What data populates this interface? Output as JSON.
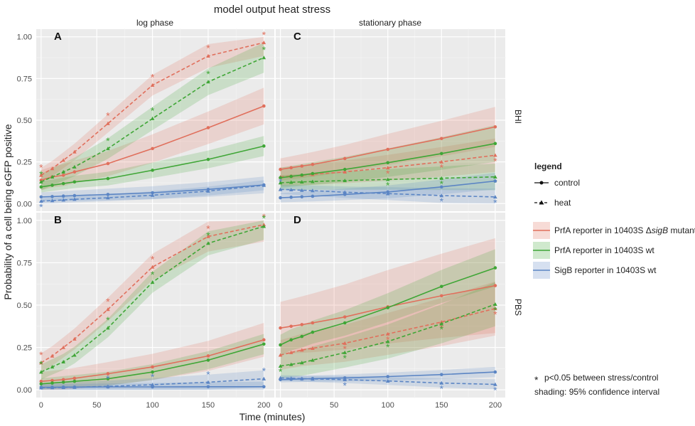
{
  "chart_data": {
    "type": "line",
    "title": "model output heat stress",
    "xlabel": "Time (minutes)",
    "ylabel": "Probability of a cell being eGFP positive",
    "x_ticks": [
      0,
      50,
      100,
      150,
      200
    ],
    "y_ticks": [
      "0.00",
      "0.25",
      "0.50",
      "0.75",
      "1.00"
    ],
    "xlim": [
      -5,
      210
    ],
    "ylim": [
      -0.05,
      1.05
    ],
    "x": [
      0,
      10,
      20,
      30,
      60,
      100,
      150,
      200
    ],
    "col_headers": [
      "log phase",
      "stationary phase"
    ],
    "row_headers": [
      "BHI",
      "PBS"
    ],
    "legend": {
      "title": "legend",
      "line_types": [
        "control",
        "heat"
      ],
      "series": [
        {
          "pre": "PrfA reporter in 10403S Δ",
          "ital": "sigB",
          "post": " mutant"
        },
        {
          "pre": "PrfA reporter in 10403S wt",
          "ital": "",
          "post": ""
        },
        {
          "pre": "SigB reporter in 10403S wt",
          "ital": "",
          "post": ""
        }
      ],
      "colors": [
        "#e06f5c",
        "#3fa636",
        "#5b85c4"
      ],
      "note_star": "*",
      "note_sig": "p<0.05 between stress/control",
      "note_shading": "shading: 95% confidence interval"
    },
    "panels": [
      {
        "label": "A",
        "col": 0,
        "row": 0,
        "series": [
          {
            "name": "PrfA ΔsigB",
            "control": [
              0.14,
              0.16,
              0.17,
              0.19,
              0.24,
              0.33,
              0.455,
              0.585
            ],
            "heat": [
              0.17,
              0.21,
              0.26,
              0.31,
              0.48,
              0.71,
              0.885,
              0.965
            ],
            "ci_control": 0.11,
            "ci_heat": 0.08,
            "stars": [
              0,
              60,
              100,
              150,
              200
            ]
          },
          {
            "name": "PrfA wt",
            "control": [
              0.1,
              0.11,
              0.12,
              0.13,
              0.15,
              0.2,
              0.265,
              0.345
            ],
            "heat": [
              0.13,
              0.16,
              0.19,
              0.22,
              0.33,
              0.51,
              0.73,
              0.875
            ],
            "ci_control": 0.06,
            "ci_heat": 0.09,
            "stars": [
              0,
              60,
              100,
              150,
              200
            ]
          },
          {
            "name": "SigB wt",
            "control": [
              0.04,
              0.042,
              0.045,
              0.048,
              0.055,
              0.065,
              0.085,
              0.112
            ],
            "heat": [
              0.015,
              0.018,
              0.022,
              0.026,
              0.035,
              0.05,
              0.075,
              0.11
            ],
            "ci_control": 0.05,
            "ci_heat": 0.03,
            "stars": [
              0
            ]
          }
        ]
      },
      {
        "label": "C",
        "col": 1,
        "row": 0,
        "series": [
          {
            "name": "PrfA ΔsigB",
            "control": [
              0.205,
              0.215,
              0.225,
              0.235,
              0.27,
              0.325,
              0.39,
              0.46
            ],
            "heat": [
              0.16,
              0.165,
              0.17,
              0.175,
              0.19,
              0.215,
              0.25,
              0.29
            ],
            "ci_control": 0.12,
            "ci_heat": 0.1,
            "stars": [
              100,
              150,
              200
            ]
          },
          {
            "name": "PrfA wt",
            "control": [
              0.155,
              0.163,
              0.171,
              0.18,
              0.205,
              0.245,
              0.3,
              0.36
            ],
            "heat": [
              0.125,
              0.128,
              0.13,
              0.132,
              0.138,
              0.145,
              0.152,
              0.16
            ],
            "ci_control": 0.11,
            "ci_heat": 0.08,
            "stars": [
              100,
              150,
              200
            ]
          },
          {
            "name": "SigB wt",
            "control": [
              0.035,
              0.038,
              0.041,
              0.044,
              0.055,
              0.07,
              0.1,
              0.135
            ],
            "heat": [
              0.085,
              0.083,
              0.08,
              0.078,
              0.068,
              0.06,
              0.048,
              0.04
            ],
            "ci_control": 0.05,
            "ci_heat": 0.05,
            "stars": [
              0,
              150,
              200
            ]
          }
        ]
      },
      {
        "label": "B",
        "col": 0,
        "row": 1,
        "series": [
          {
            "name": "PrfA ΔsigB",
            "control": [
              0.05,
              0.055,
              0.06,
              0.068,
              0.095,
              0.135,
              0.2,
              0.295
            ],
            "heat": [
              0.16,
              0.2,
              0.25,
              0.3,
              0.475,
              0.725,
              0.905,
              0.975
            ],
            "ci_control": 0.1,
            "ci_heat": 0.1,
            "stars": [
              0,
              60,
              100,
              150,
              200
            ]
          },
          {
            "name": "PrfA wt",
            "control": [
              0.035,
              0.04,
              0.045,
              0.05,
              0.065,
              0.105,
              0.175,
              0.27
            ],
            "heat": [
              0.105,
              0.135,
              0.165,
              0.205,
              0.365,
              0.635,
              0.865,
              0.965
            ],
            "ci_control": 0.06,
            "ci_heat": 0.08,
            "stars": [
              0,
              60,
              100,
              150,
              200
            ]
          },
          {
            "name": "SigB wt",
            "control": [
              0.015,
              0.015,
              0.016,
              0.016,
              0.017,
              0.017,
              0.018,
              0.018
            ],
            "heat": [
              0.012,
              0.013,
              0.014,
              0.015,
              0.02,
              0.03,
              0.045,
              0.065
            ],
            "ci_control": 0.03,
            "ci_heat": 0.05,
            "stars": [
              60,
              100,
              150,
              200
            ]
          }
        ]
      },
      {
        "label": "D",
        "col": 1,
        "row": 1,
        "series": [
          {
            "name": "PrfA ΔsigB",
            "control": [
              0.365,
              0.375,
              0.385,
              0.395,
              0.43,
              0.49,
              0.555,
              0.615
            ],
            "heat": [
              0.205,
              0.22,
              0.235,
              0.245,
              0.275,
              0.33,
              0.4,
              0.48
            ],
            "ci_control": 0.28,
            "ci_heat": 0.16,
            "stars": [
              60,
              100,
              150,
              200
            ]
          },
          {
            "name": "PrfA wt",
            "control": [
              0.265,
              0.295,
              0.315,
              0.34,
              0.395,
              0.485,
              0.61,
              0.72
            ],
            "heat": [
              0.14,
              0.15,
              0.16,
              0.175,
              0.22,
              0.285,
              0.39,
              0.505
            ],
            "ci_control": 0.11,
            "ci_heat": 0.13,
            "stars": [
              0,
              60,
              100,
              150,
              200
            ]
          },
          {
            "name": "SigB wt",
            "control": [
              0.06,
              0.062,
              0.064,
              0.066,
              0.07,
              0.078,
              0.09,
              0.105
            ],
            "heat": [
              0.07,
              0.068,
              0.066,
              0.064,
              0.06,
              0.052,
              0.04,
              0.032
            ],
            "ci_control": 0.03,
            "ci_heat": 0.03,
            "stars": [
              60,
              150,
              200
            ]
          }
        ]
      }
    ]
  }
}
